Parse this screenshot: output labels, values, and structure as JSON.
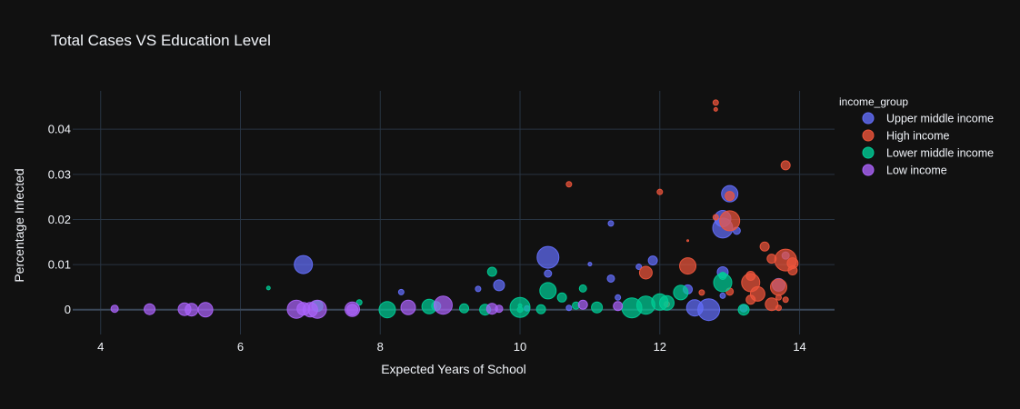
{
  "chart_data": {
    "type": "scatter",
    "title": "Total Cases VS Education Level",
    "xlabel": "Expected Years of School",
    "ylabel": "Percentage Infected",
    "xlim": [
      3.6,
      14.5
    ],
    "ylim": [
      -0.0055,
      0.0485
    ],
    "x_ticks": [
      4,
      6,
      8,
      10,
      12,
      14
    ],
    "x_tick_labels": [
      "4",
      "6",
      "8",
      "10",
      "12",
      "14"
    ],
    "y_ticks": [
      0,
      0.01,
      0.02,
      0.03,
      0.04
    ],
    "y_tick_labels": [
      "0",
      "0.01",
      "0.02",
      "0.03",
      "0.04"
    ],
    "grid": true,
    "legend_title": "income_group",
    "legend_position": "top-right",
    "series": [
      {
        "name": "Upper middle income",
        "color": "#636efa",
        "points": [
          {
            "x": 6.9,
            "y": 0.01,
            "s": 10
          },
          {
            "x": 8.3,
            "y": 0.0039,
            "s": 3
          },
          {
            "x": 9.4,
            "y": 0.0046,
            "s": 3
          },
          {
            "x": 9.7,
            "y": 0.0054,
            "s": 6
          },
          {
            "x": 10.4,
            "y": 0.0116,
            "s": 12
          },
          {
            "x": 10.4,
            "y": 0.008,
            "s": 4
          },
          {
            "x": 11.0,
            "y": 0.0101,
            "s": 2
          },
          {
            "x": 11.3,
            "y": 0.0191,
            "s": 3
          },
          {
            "x": 11.3,
            "y": 0.0069,
            "s": 4
          },
          {
            "x": 11.4,
            "y": 0.0027,
            "s": 3
          },
          {
            "x": 11.7,
            "y": 0.0095,
            "s": 3
          },
          {
            "x": 11.9,
            "y": 0.0109,
            "s": 5
          },
          {
            "x": 12.4,
            "y": 0.0045,
            "s": 5
          },
          {
            "x": 12.5,
            "y": 0.0004,
            "s": 9
          },
          {
            "x": 12.7,
            "y": 0.0,
            "s": 12
          },
          {
            "x": 12.9,
            "y": 0.0181,
            "s": 11
          },
          {
            "x": 12.9,
            "y": 0.0202,
            "s": 9
          },
          {
            "x": 12.9,
            "y": 0.0083,
            "s": 6
          },
          {
            "x": 12.9,
            "y": 0.0031,
            "s": 3
          },
          {
            "x": 13.0,
            "y": 0.0257,
            "s": 9
          },
          {
            "x": 13.1,
            "y": 0.0175,
            "s": 4
          },
          {
            "x": 13.2,
            "y": 0.0003,
            "s": 4
          },
          {
            "x": 13.7,
            "y": 0.0055,
            "s": 7
          },
          {
            "x": 13.8,
            "y": 0.012,
            "s": 4
          },
          {
            "x": 10.1,
            "y": 0.0003,
            "s": 3
          },
          {
            "x": 10.7,
            "y": 0.0004,
            "s": 3
          }
        ]
      },
      {
        "name": "High income",
        "color": "#ef553b",
        "points": [
          {
            "x": 10.7,
            "y": 0.0278,
            "s": 3
          },
          {
            "x": 12.0,
            "y": 0.0261,
            "s": 3
          },
          {
            "x": 11.8,
            "y": 0.0082,
            "s": 7
          },
          {
            "x": 12.4,
            "y": 0.0097,
            "s": 9
          },
          {
            "x": 12.6,
            "y": 0.0038,
            "s": 3
          },
          {
            "x": 12.8,
            "y": 0.0459,
            "s": 3
          },
          {
            "x": 12.8,
            "y": 0.0444,
            "s": 2
          },
          {
            "x": 12.8,
            "y": 0.0205,
            "s": 3
          },
          {
            "x": 12.4,
            "y": 0.0153,
            "s": 1
          },
          {
            "x": 13.0,
            "y": 0.0197,
            "s": 11
          },
          {
            "x": 13.0,
            "y": 0.0252,
            "s": 5
          },
          {
            "x": 13.0,
            "y": 0.004,
            "s": 4
          },
          {
            "x": 13.3,
            "y": 0.006,
            "s": 10
          },
          {
            "x": 13.3,
            "y": 0.0075,
            "s": 5
          },
          {
            "x": 13.4,
            "y": 0.0035,
            "s": 8
          },
          {
            "x": 13.3,
            "y": 0.0022,
            "s": 5
          },
          {
            "x": 13.5,
            "y": 0.014,
            "s": 5
          },
          {
            "x": 13.6,
            "y": 0.0113,
            "s": 5
          },
          {
            "x": 13.6,
            "y": 0.0012,
            "s": 7
          },
          {
            "x": 13.7,
            "y": 0.005,
            "s": 9
          },
          {
            "x": 13.7,
            "y": 0.0027,
            "s": 3
          },
          {
            "x": 13.7,
            "y": 0.0004,
            "s": 3
          },
          {
            "x": 13.8,
            "y": 0.011,
            "s": 12
          },
          {
            "x": 13.8,
            "y": 0.032,
            "s": 5
          },
          {
            "x": 13.8,
            "y": 0.0022,
            "s": 3
          },
          {
            "x": 13.9,
            "y": 0.0103,
            "s": 6
          },
          {
            "x": 13.9,
            "y": 0.0087,
            "s": 5
          },
          {
            "x": 12.1,
            "y": 0.0012,
            "s": 3
          }
        ]
      },
      {
        "name": "Lower middle income",
        "color": "#00cc96",
        "points": [
          {
            "x": 6.4,
            "y": 0.0048,
            "s": 2
          },
          {
            "x": 7.1,
            "y": 0.0008,
            "s": 6
          },
          {
            "x": 7.7,
            "y": 0.0016,
            "s": 3
          },
          {
            "x": 8.1,
            "y": 0.0,
            "s": 9
          },
          {
            "x": 8.7,
            "y": 0.0007,
            "s": 8
          },
          {
            "x": 8.8,
            "y": 0.0008,
            "s": 5
          },
          {
            "x": 9.2,
            "y": 0.0003,
            "s": 5
          },
          {
            "x": 9.5,
            "y": 0.0,
            "s": 6
          },
          {
            "x": 9.6,
            "y": 0.0084,
            "s": 5
          },
          {
            "x": 10.0,
            "y": 0.0005,
            "s": 11
          },
          {
            "x": 10.0,
            "y": 0.0009,
            "s": 2
          },
          {
            "x": 10.3,
            "y": 0.0001,
            "s": 5
          },
          {
            "x": 10.4,
            "y": 0.0042,
            "s": 9
          },
          {
            "x": 10.6,
            "y": 0.0027,
            "s": 5
          },
          {
            "x": 10.8,
            "y": 0.0009,
            "s": 4
          },
          {
            "x": 10.9,
            "y": 0.0047,
            "s": 4
          },
          {
            "x": 11.1,
            "y": 0.0005,
            "s": 6
          },
          {
            "x": 11.6,
            "y": 0.0004,
            "s": 11
          },
          {
            "x": 11.8,
            "y": 0.001,
            "s": 10
          },
          {
            "x": 12.0,
            "y": 0.0017,
            "s": 9
          },
          {
            "x": 12.1,
            "y": 0.0015,
            "s": 8
          },
          {
            "x": 12.3,
            "y": 0.0038,
            "s": 8
          },
          {
            "x": 12.9,
            "y": 0.006,
            "s": 10
          },
          {
            "x": 12.9,
            "y": 0.0075,
            "s": 4
          },
          {
            "x": 13.2,
            "y": 0.0,
            "s": 6
          },
          {
            "x": 10.0,
            "y": 0.0,
            "s": 3
          }
        ]
      },
      {
        "name": "Low income",
        "color": "#ab63fa",
        "points": [
          {
            "x": 4.2,
            "y": 0.0002,
            "s": 4
          },
          {
            "x": 4.7,
            "y": 0.0001,
            "s": 6
          },
          {
            "x": 5.2,
            "y": 0.0001,
            "s": 7
          },
          {
            "x": 5.3,
            "y": 0.0,
            "s": 7
          },
          {
            "x": 5.5,
            "y": 0.0,
            "s": 8
          },
          {
            "x": 6.8,
            "y": 0.0001,
            "s": 10
          },
          {
            "x": 6.9,
            "y": 0.0002,
            "s": 7
          },
          {
            "x": 7.0,
            "y": 0.0,
            "s": 8
          },
          {
            "x": 7.1,
            "y": 0.0001,
            "s": 10
          },
          {
            "x": 7.6,
            "y": 0.0001,
            "s": 8
          },
          {
            "x": 7.6,
            "y": 0.0,
            "s": 6
          },
          {
            "x": 8.4,
            "y": 0.0005,
            "s": 8
          },
          {
            "x": 8.9,
            "y": 0.001,
            "s": 10
          },
          {
            "x": 9.6,
            "y": 0.0002,
            "s": 6
          },
          {
            "x": 9.7,
            "y": 0.0002,
            "s": 4
          },
          {
            "x": 10.9,
            "y": 0.0011,
            "s": 5
          },
          {
            "x": 11.4,
            "y": 0.0008,
            "s": 5
          }
        ]
      }
    ]
  }
}
